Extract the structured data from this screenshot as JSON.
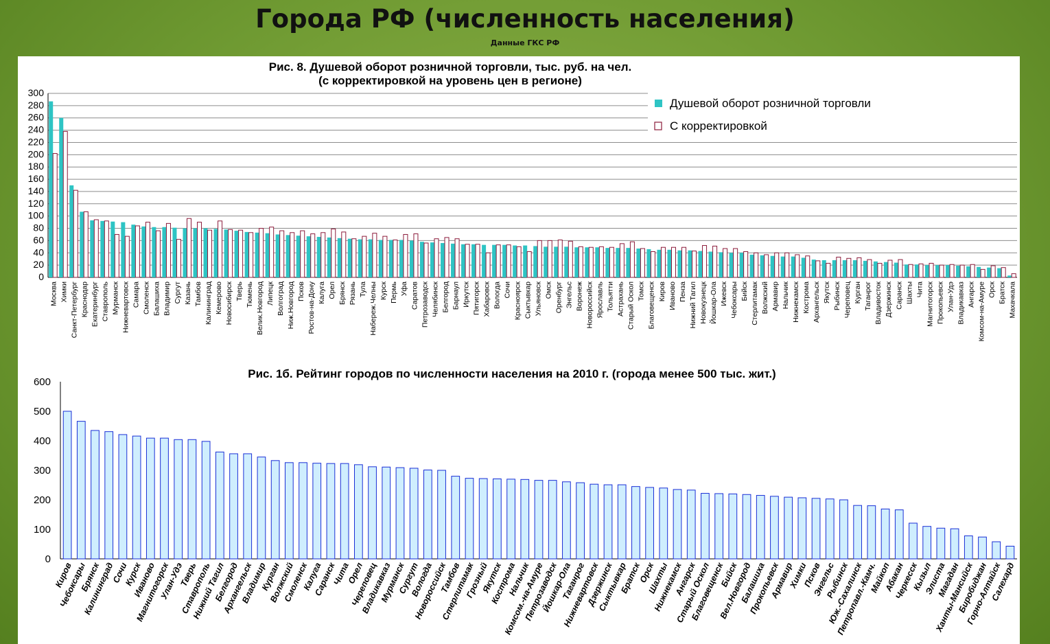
{
  "header": {
    "title": "Города РФ (численность населения)",
    "subtitle": "Данные ГКС РФ"
  },
  "chart_data": [
    {
      "type": "bar",
      "title": "Рис. 8. Душевой оборот розничной торговли, тыс. руб. на чел.",
      "subtitle": "(с корректировкой на уровень цен в регионе)",
      "ylim": [
        0,
        300
      ],
      "yticks": [
        0,
        20,
        40,
        60,
        80,
        100,
        120,
        140,
        160,
        180,
        200,
        220,
        240,
        260,
        280,
        300
      ],
      "grid": true,
      "legend_position": "top-right",
      "categories": [
        "Москва",
        "Химки",
        "Санкт-Петербург",
        "Краснодар",
        "Екатеринбург",
        "Ставрополь",
        "Мурманск",
        "Нижневартовск",
        "Самара",
        "Смоленск",
        "Балашиха",
        "Владимир",
        "Сургут",
        "Казань",
        "Тамбов",
        "Калининград",
        "Кемерово",
        "Новосибирск",
        "Тверь",
        "Тюмень",
        "Велик.Новгород",
        "Липецк",
        "Волгоград",
        "Ниж.Новгород",
        "Псков",
        "Ростов-на-Дону",
        "Калуга",
        "Орел",
        "Брянск",
        "Рязань",
        "Тула",
        "Набереж.Челны",
        "Курск",
        "Пермь",
        "Уфа",
        "Саратов",
        "Петрозаводск",
        "Челябинск",
        "Белгород",
        "Барнаул",
        "Иркутск",
        "Пятигорск",
        "Хабаровск",
        "Вологда",
        "Сочи",
        "Красноярск",
        "Сыктывкар",
        "Ульяновск",
        "Омск",
        "Оренбург",
        "Энгельс",
        "Воронеж",
        "Новороссийск",
        "Ярославль",
        "Тольятти",
        "Астрахань",
        "Старый Оскол",
        "Томск",
        "Благовещенск",
        "Киров",
        "Иваново",
        "Пенза",
        "Нижний Тагил",
        "Новокузнецк",
        "Йошкар-Ола",
        "Ижевск",
        "Чебоксары",
        "Бийск",
        "Стерлитамак",
        "Волжский",
        "Армавир",
        "Нальчик",
        "Нижнекамск",
        "Кострома",
        "Архангельск",
        "Якутск",
        "Рыбинск",
        "Череповец",
        "Курган",
        "Таганрог",
        "Владивосток",
        "Дзержинск",
        "Саранск",
        "Шахты",
        "Чита",
        "Магнитогорск",
        "Прокопьевск",
        "Улан-Удэ",
        "Владикавказ",
        "Ангарск",
        "Комсом-на-Амуре",
        "Орск",
        "Братск",
        "Махачкала"
      ],
      "series": [
        {
          "name": "Душевой оборот розничной торговли",
          "color": "#2ec4c4",
          "values": [
            287,
            260,
            150,
            107,
            93,
            92,
            91,
            90,
            86,
            83,
            82,
            82,
            81,
            80,
            80,
            80,
            79,
            78,
            76,
            74,
            73,
            72,
            70,
            69,
            68,
            67,
            66,
            65,
            64,
            63,
            62,
            62,
            61,
            61,
            61,
            60,
            58,
            57,
            56,
            55,
            54,
            54,
            53,
            53,
            53,
            52,
            52,
            51,
            50,
            50,
            50,
            49,
            49,
            49,
            48,
            48,
            48,
            47,
            46,
            45,
            45,
            44,
            44,
            43,
            42,
            41,
            40,
            40,
            37,
            36,
            35,
            34,
            34,
            32,
            29,
            28,
            28,
            28,
            28,
            27,
            26,
            25,
            24,
            21,
            21,
            20,
            20,
            20,
            19,
            18,
            17,
            16,
            15,
            3
          ]
        },
        {
          "name": "С корректировкой",
          "color": "#8b1a3a",
          "values": [
            202,
            238,
            142,
            107,
            94,
            92,
            70,
            67,
            84,
            90,
            76,
            88,
            62,
            96,
            90,
            77,
            92,
            78,
            77,
            73,
            80,
            82,
            76,
            73,
            76,
            71,
            73,
            79,
            74,
            63,
            67,
            72,
            67,
            61,
            70,
            71,
            56,
            63,
            65,
            63,
            54,
            54,
            40,
            53,
            53,
            50,
            42,
            60,
            60,
            61,
            59,
            50,
            49,
            50,
            49,
            55,
            58,
            47,
            42,
            49,
            49,
            49,
            43,
            52,
            51,
            47,
            47,
            42,
            40,
            37,
            40,
            40,
            37,
            35,
            27,
            23,
            33,
            31,
            32,
            29,
            23,
            28,
            29,
            21,
            22,
            23,
            20,
            21,
            20,
            21,
            13,
            19,
            16,
            6
          ]
        }
      ]
    },
    {
      "type": "bar",
      "title": "Рис. 1б. Рейтинг городов по численности населения на 2010 г. (города менее 500 тыс. жит.)",
      "ylim": [
        0,
        600
      ],
      "yticks": [
        0,
        100,
        200,
        300,
        400,
        500,
        600
      ],
      "grid": false,
      "categories": [
        "Киров",
        "Чебоксары",
        "Брянск",
        "Калининград",
        "Сочи",
        "Курск",
        "Иваново",
        "Магнитогорск",
        "Улан-Удэ",
        "Тверь",
        "Ставрополь",
        "Нижний Тагил",
        "Белгород",
        "Архангельск",
        "Владимир",
        "Курган",
        "Волжский",
        "Смоленск",
        "Калуга",
        "Саранск",
        "Чита",
        "Орел",
        "Череповец",
        "Владикавказ",
        "Мурманск",
        "Сургут",
        "Вологда",
        "Новороссийск",
        "Тамбов",
        "Стерлитамак",
        "Грозный",
        "Якутск",
        "Кострома",
        "Нальчик",
        "Комсом.-на-Амуре",
        "Петрозаводск",
        "Йошкар-Ола",
        "Таганрог",
        "Нижневартовск",
        "Дзержинск",
        "Сыктывкар",
        "Братск",
        "Орск",
        "Шахты",
        "Нижнекамск",
        "Ангарск",
        "Старый Оскол",
        "Благовещенск",
        "Бийск",
        "Вел.Новгород",
        "Балашиха",
        "Прокопьевск",
        "Армавир",
        "Химки",
        "Псков",
        "Энгельс",
        "Рыбинск",
        "Юж.-Сахалинск",
        "Петропавл.-Камч.",
        "Майкоп",
        "Абакан",
        "Черкесск",
        "Кызыл",
        "Элиста",
        "Магадан",
        "Ханты-Мансийск",
        "Биробиджан",
        "Горно-Алтайск",
        "Салехард"
      ],
      "series": [
        {
          "color": "#cfeefe",
          "values": [
            500,
            466,
            435,
            431,
            421,
            416,
            409,
            409,
            404,
            404,
            398,
            362,
            356,
            356,
            345,
            333,
            326,
            326,
            324,
            323,
            323,
            319,
            312,
            311,
            309,
            307,
            301,
            300,
            280,
            273,
            272,
            271,
            270,
            269,
            266,
            266,
            261,
            258,
            253,
            251,
            251,
            245,
            242,
            240,
            235,
            233,
            222,
            221,
            220,
            218,
            215,
            212,
            209,
            207,
            205,
            203,
            200,
            181,
            180,
            169,
            166,
            121,
            110,
            104,
            102,
            78,
            74,
            58,
            43
          ]
        }
      ]
    }
  ]
}
